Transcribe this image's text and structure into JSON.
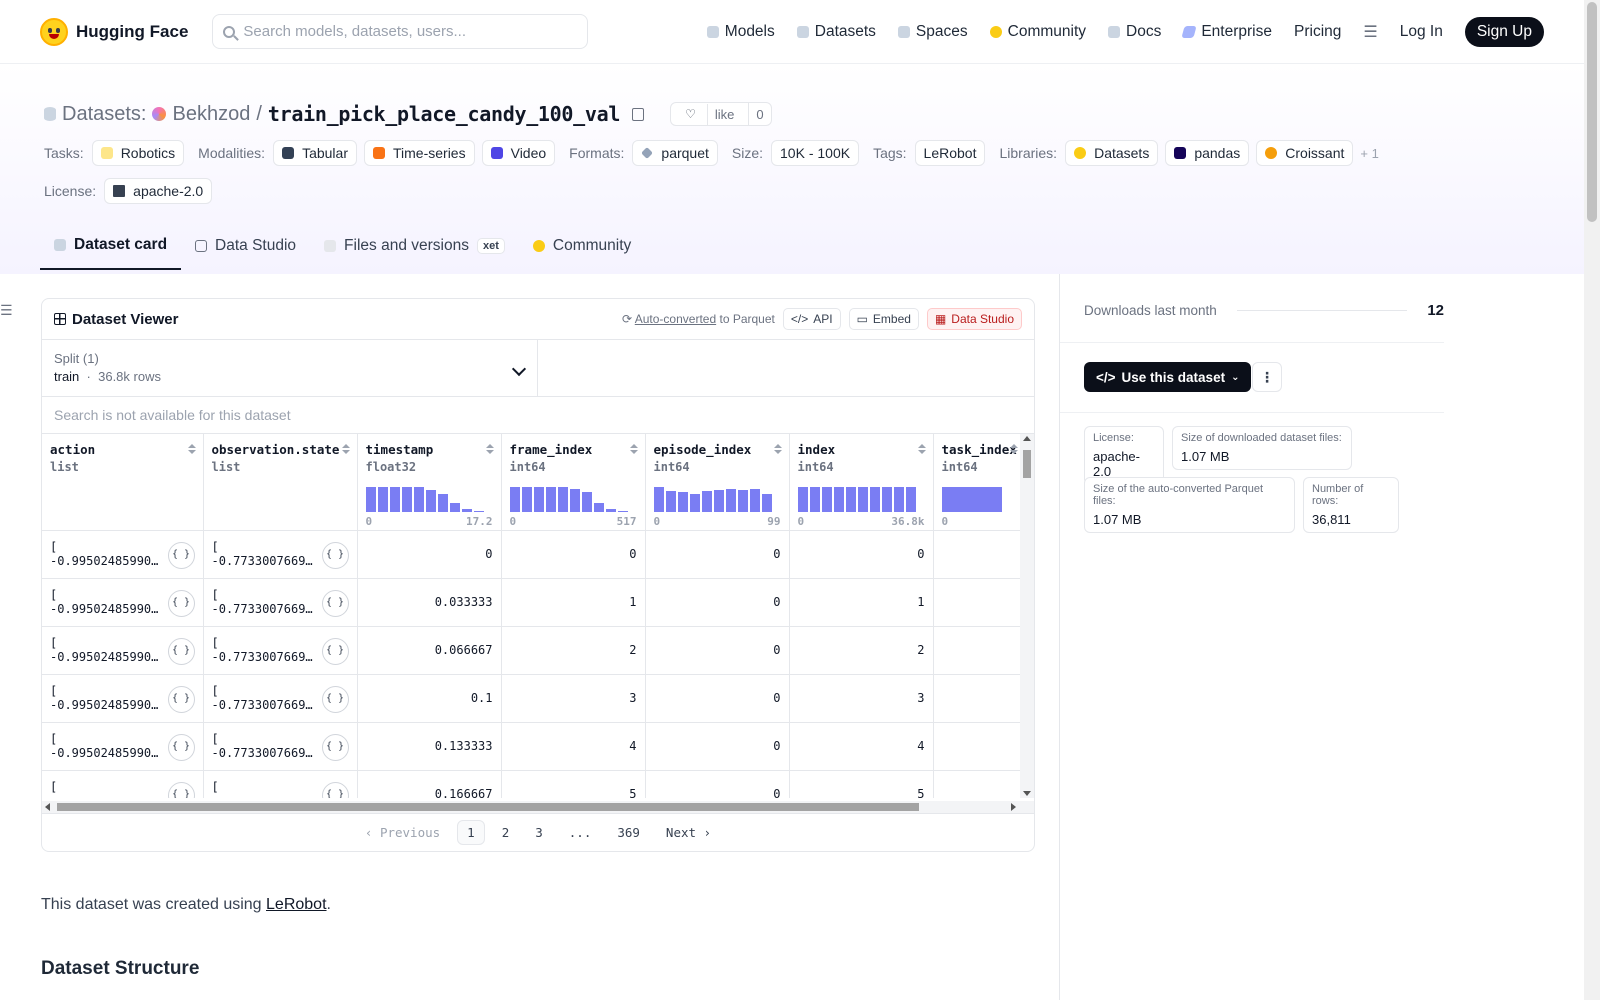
{
  "header": {
    "brand": "Hugging Face",
    "search_placeholder": "Search models, datasets, users...",
    "nav": [
      "Models",
      "Datasets",
      "Spaces",
      "Community",
      "Docs",
      "Enterprise",
      "Pricing"
    ],
    "login": "Log In",
    "signup": "Sign Up"
  },
  "repo": {
    "section": "Datasets:",
    "owner": "Bekhzod",
    "separator": "/",
    "name": "train_pick_place_candy_100_val",
    "like_label": "like",
    "like_count": "0"
  },
  "tags": {
    "tasks_label": "Tasks:",
    "tasks": [
      "Robotics"
    ],
    "modalities_label": "Modalities:",
    "modalities": [
      "Tabular",
      "Time-series",
      "Video"
    ],
    "formats_label": "Formats:",
    "formats": [
      "parquet"
    ],
    "size_label": "Size:",
    "size": "10K - 100K",
    "tags_label": "Tags:",
    "tags": [
      "LeRobot"
    ],
    "libraries_label": "Libraries:",
    "libraries": [
      "Datasets",
      "pandas",
      "Croissant"
    ],
    "more": "+ 1",
    "license_label": "License:",
    "license": "apache-2.0"
  },
  "tabs": [
    "Dataset card",
    "Data Studio",
    "Files and versions",
    "Community"
  ],
  "xet_badge": "xet",
  "viewer": {
    "title": "Dataset Viewer",
    "auto_converted": "Auto-converted",
    "to_parquet": "to Parquet",
    "api": "API",
    "embed": "Embed",
    "data_studio": "Data Studio",
    "split_label": "Split (1)",
    "split_name": "train",
    "split_dot": "·",
    "split_rows": "36.8k rows",
    "search_na": "Search is not available for this dataset",
    "columns": [
      {
        "name": "action",
        "type": "list"
      },
      {
        "name": "observation.state",
        "type": "list"
      },
      {
        "name": "timestamp",
        "type": "float32",
        "min": "0",
        "max": "17.2",
        "hist": [
          0.95,
          0.95,
          0.95,
          0.95,
          0.95,
          0.85,
          0.7,
          0.35,
          0.12,
          0.05
        ]
      },
      {
        "name": "frame_index",
        "type": "int64",
        "min": "0",
        "max": "517",
        "hist": [
          0.95,
          0.95,
          0.95,
          0.95,
          0.95,
          0.9,
          0.75,
          0.35,
          0.1,
          0.04
        ]
      },
      {
        "name": "episode_index",
        "type": "int64",
        "min": "0",
        "max": "99",
        "hist": [
          0.95,
          0.8,
          0.75,
          0.7,
          0.8,
          0.85,
          0.9,
          0.85,
          0.9,
          0.7
        ]
      },
      {
        "name": "index",
        "type": "int64",
        "min": "0",
        "max": "36.8k",
        "hist": [
          0.95,
          0.95,
          0.95,
          0.95,
          0.95,
          0.95,
          0.95,
          0.95,
          0.95,
          0.95
        ]
      },
      {
        "name": "task_index",
        "type": "int64",
        "min": "0",
        "max": "",
        "hist": [
          0.95
        ]
      }
    ],
    "rows": [
      {
        "action": "[",
        "action2": "-0.99502485990…",
        "state": "[",
        "state2": "-0.7733007669…",
        "timestamp": "0",
        "frame_index": "0",
        "episode_index": "0",
        "index": "0"
      },
      {
        "action": "[",
        "action2": "-0.99502485990…",
        "state": "[",
        "state2": "-0.7733007669…",
        "timestamp": "0.033333",
        "frame_index": "1",
        "episode_index": "0",
        "index": "1"
      },
      {
        "action": "[",
        "action2": "-0.99502485990…",
        "state": "[",
        "state2": "-0.7733007669…",
        "timestamp": "0.066667",
        "frame_index": "2",
        "episode_index": "0",
        "index": "2"
      },
      {
        "action": "[",
        "action2": "-0.99502485990…",
        "state": "[",
        "state2": "-0.7733007669…",
        "timestamp": "0.1",
        "frame_index": "3",
        "episode_index": "0",
        "index": "3"
      },
      {
        "action": "[",
        "action2": "-0.99502485990…",
        "state": "[",
        "state2": "-0.7733007669…",
        "timestamp": "0.133333",
        "frame_index": "4",
        "episode_index": "0",
        "index": "4"
      },
      {
        "action": "[",
        "action2": "",
        "state": "[",
        "state2": "",
        "timestamp": "0.166667",
        "frame_index": "5",
        "episode_index": "0",
        "index": "5"
      }
    ],
    "json_icon": "{ }",
    "pager": {
      "prev": "Previous",
      "pages": [
        "1",
        "2",
        "3",
        "...",
        "369"
      ],
      "next": "Next",
      "current": "1"
    }
  },
  "card": {
    "intro_before": "This dataset was created using ",
    "intro_link": "LeRobot",
    "intro_after": ".",
    "section_title": "Dataset Structure"
  },
  "sidebar": {
    "downloads_label": "Downloads last month",
    "downloads_count": "12",
    "use_dataset": "Use this dataset",
    "kebab": "⋮",
    "meta": [
      {
        "k": "License:",
        "v": "apache-2.0"
      },
      {
        "k": "Size of downloaded dataset files:",
        "v": "1.07 MB"
      },
      {
        "k": "Size of the auto-converted Parquet files:",
        "v": "1.07 MB"
      },
      {
        "k": "Number of rows:",
        "v": "36,811"
      }
    ]
  },
  "colors": {
    "accent": "#6366f1",
    "dark": "#0b0f19"
  }
}
